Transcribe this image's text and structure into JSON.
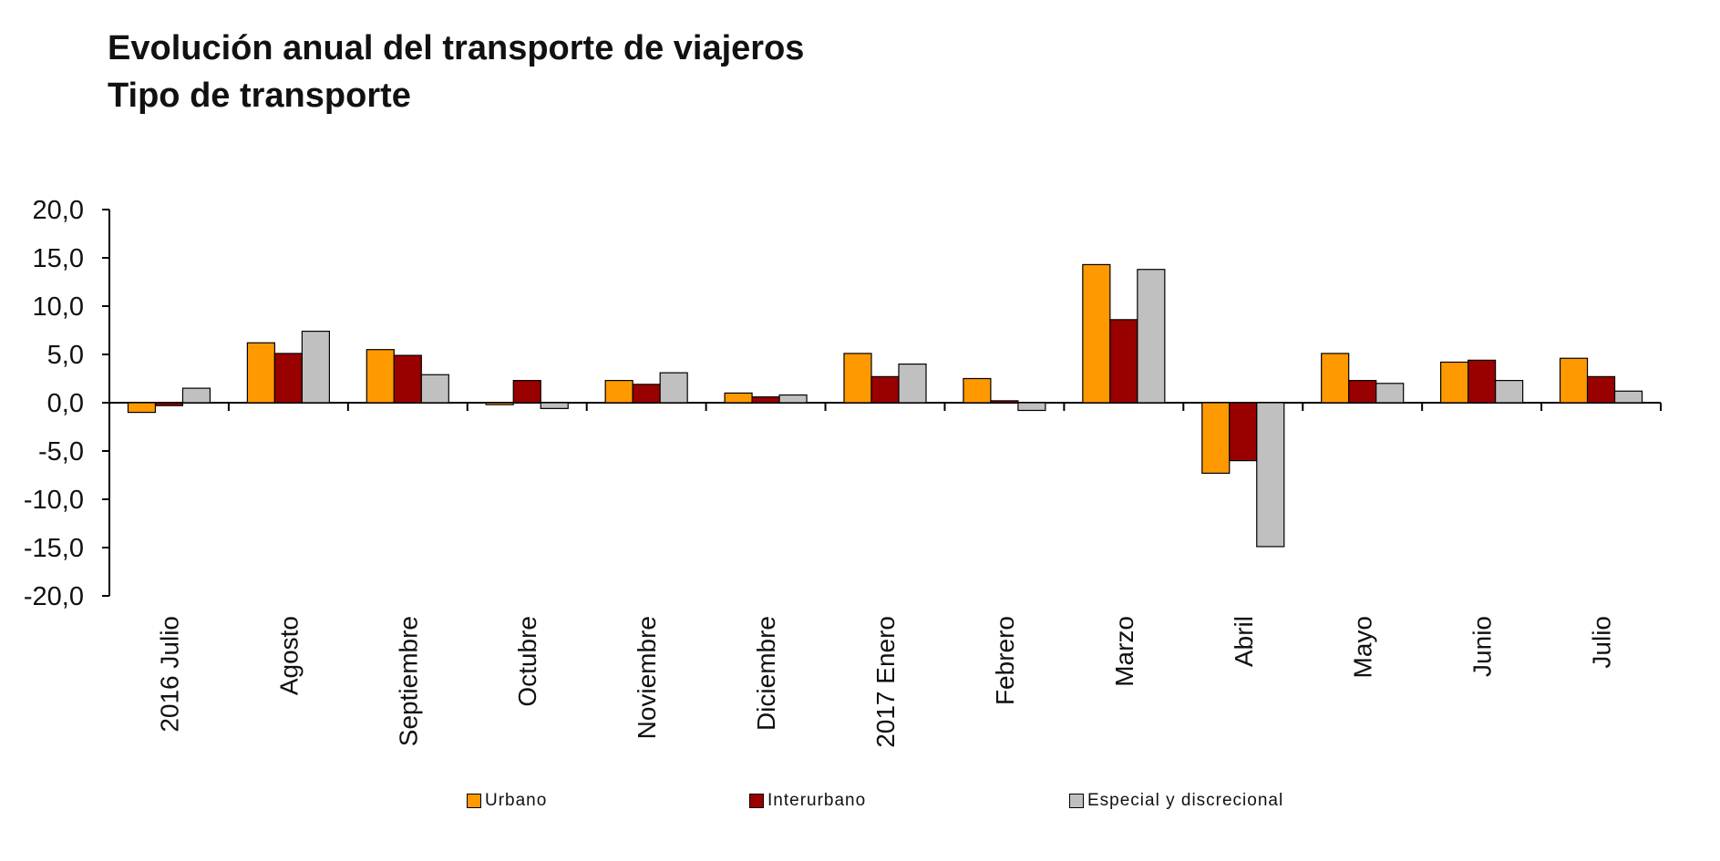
{
  "title_line1": "Evolución anual del transporte de viajeros",
  "title_line2": "Tipo de transporte",
  "chart_data": {
    "type": "bar",
    "title": "Evolución anual del transporte de viajeros",
    "subtitle": "Tipo de transporte",
    "categories": [
      "2016 Julio",
      "Agosto",
      "Septiembre",
      "Octubre",
      "Noviembre",
      "Diciembre",
      "2017 Enero",
      "Febrero",
      "Marzo",
      "Abril",
      "Mayo",
      "Junio",
      "Julio"
    ],
    "series": [
      {
        "name": "Urbano",
        "color": "#FF9900",
        "values": [
          -1.0,
          6.2,
          5.5,
          -0.2,
          2.3,
          1.0,
          5.1,
          2.5,
          14.3,
          -7.3,
          5.1,
          4.2,
          4.6
        ]
      },
      {
        "name": "Interurbano",
        "color": "#990000",
        "values": [
          -0.3,
          5.1,
          4.9,
          2.3,
          1.9,
          0.6,
          2.7,
          0.2,
          8.6,
          -6.0,
          2.3,
          4.4,
          2.7
        ]
      },
      {
        "name": "Especial y discrecional",
        "color": "#C0C0C0",
        "values": [
          1.5,
          7.4,
          2.9,
          -0.6,
          3.1,
          0.8,
          4.0,
          -0.8,
          13.8,
          -14.9,
          2.0,
          2.3,
          1.2
        ]
      }
    ],
    "yticks": [
      "20,0",
      "15,0",
      "10,0",
      "5,0",
      "0,0",
      "-5,0",
      "-10,0",
      "-15,0",
      "-20,0"
    ],
    "ylim": [
      -20,
      20
    ],
    "xlabel": "",
    "ylabel": "",
    "grid": false,
    "legend_position": "bottom"
  },
  "legend": [
    {
      "label": "Urbano",
      "color": "#FF9900"
    },
    {
      "label": "Interurbano",
      "color": "#990000"
    },
    {
      "label": "Especial y discrecional",
      "color": "#C0C0C0"
    }
  ]
}
